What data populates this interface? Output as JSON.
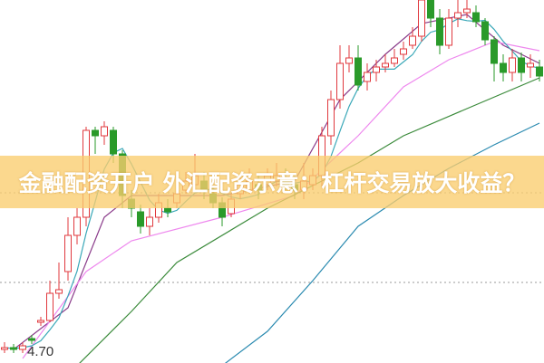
{
  "title": "金融配资开户 外汇配资示意：杠杆交易放大收益？",
  "chart_data": {
    "type": "candlestick",
    "title": "",
    "price_label": "4.70",
    "ylim": [
      4.65,
      6.65
    ],
    "grid": false,
    "reference_lines": [
      5.09,
      5.585
    ],
    "colors": {
      "up": "#e0393e",
      "down": "#2a9a2a",
      "ma5": "#3aa8b8",
      "ma_purple": "#8a3b8a",
      "ma_pink": "#ee88ee",
      "ma_green": "#3a8a3a",
      "ma_blue": "#2a8ab0",
      "banner": "#facd6e"
    },
    "candles": [
      [
        4.72,
        4.73,
        4.76,
        4.7
      ],
      [
        4.73,
        4.72,
        4.75,
        4.7
      ],
      [
        4.72,
        4.74,
        4.76,
        4.7
      ],
      [
        4.78,
        4.77,
        4.8,
        4.75
      ],
      [
        4.87,
        4.88,
        4.9,
        4.85
      ],
      [
        4.88,
        5.03,
        5.1,
        4.87
      ],
      [
        5.03,
        5.05,
        5.2,
        5.0
      ],
      [
        5.15,
        5.35,
        5.45,
        5.1
      ],
      [
        5.35,
        5.45,
        5.5,
        5.3
      ],
      [
        5.45,
        5.93,
        5.95,
        5.4
      ],
      [
        5.93,
        5.9,
        5.95,
        5.8
      ],
      [
        5.9,
        5.95,
        5.98,
        5.85
      ],
      [
        5.93,
        5.8,
        5.95,
        5.75
      ],
      [
        5.8,
        5.57,
        5.82,
        5.5
      ],
      [
        5.55,
        5.5,
        5.6,
        5.45
      ],
      [
        5.48,
        5.4,
        5.52,
        5.36
      ],
      [
        5.4,
        5.45,
        5.5,
        5.35
      ],
      [
        5.45,
        5.53,
        5.58,
        5.42
      ],
      [
        5.5,
        5.48,
        5.55,
        5.45
      ],
      [
        5.53,
        5.58,
        5.62,
        5.5
      ],
      [
        5.6,
        5.65,
        5.7,
        5.58
      ],
      [
        5.63,
        5.68,
        5.8,
        5.6
      ],
      [
        5.65,
        5.6,
        5.7,
        5.55
      ],
      [
        5.58,
        5.53,
        5.62,
        5.5
      ],
      [
        5.53,
        5.45,
        5.56,
        5.4
      ],
      [
        5.47,
        5.55,
        5.58,
        5.45
      ],
      [
        5.58,
        5.63,
        5.68,
        5.55
      ],
      [
        5.6,
        5.65,
        5.72,
        5.58
      ],
      [
        5.63,
        5.6,
        5.68,
        5.55
      ],
      [
        5.63,
        5.68,
        5.72,
        5.6
      ],
      [
        5.65,
        5.68,
        5.75,
        5.62
      ],
      [
        5.65,
        5.63,
        5.72,
        5.6
      ],
      [
        5.63,
        5.6,
        5.68,
        5.55
      ],
      [
        5.6,
        5.65,
        5.75,
        5.55
      ],
      [
        5.63,
        5.68,
        5.72,
        5.6
      ],
      [
        5.68,
        5.9,
        5.95,
        5.62
      ],
      [
        5.9,
        6.1,
        6.15,
        5.85
      ],
      [
        6.1,
        6.3,
        6.4,
        6.05
      ],
      [
        6.3,
        6.33,
        6.4,
        6.25
      ],
      [
        6.33,
        6.18,
        6.4,
        6.15
      ],
      [
        6.2,
        6.25,
        6.3,
        6.15
      ],
      [
        6.25,
        6.28,
        6.32,
        6.2
      ],
      [
        6.28,
        6.3,
        6.35,
        6.25
      ],
      [
        6.3,
        6.33,
        6.38,
        6.28
      ],
      [
        6.35,
        6.38,
        6.42,
        6.32
      ],
      [
        6.4,
        6.45,
        6.5,
        6.38
      ],
      [
        6.45,
        6.65,
        6.7,
        6.42
      ],
      [
        6.65,
        6.55,
        6.7,
        6.5
      ],
      [
        6.55,
        6.4,
        6.6,
        6.35
      ],
      [
        6.4,
        6.55,
        6.6,
        6.38
      ],
      [
        6.55,
        6.58,
        6.65,
        6.5
      ],
      [
        6.58,
        6.6,
        6.65,
        6.55
      ],
      [
        6.58,
        6.53,
        6.62,
        6.5
      ],
      [
        6.53,
        6.43,
        6.55,
        6.4
      ],
      [
        6.43,
        6.3,
        6.45,
        6.2
      ],
      [
        6.3,
        6.25,
        6.35,
        6.2
      ],
      [
        6.25,
        6.33,
        6.38,
        6.2
      ],
      [
        6.33,
        6.25,
        6.36,
        6.2
      ],
      [
        6.28,
        6.3,
        6.35,
        6.22
      ],
      [
        6.28,
        6.23,
        6.32,
        6.2
      ]
    ],
    "candle_fields": [
      "open",
      "close",
      "high",
      "low"
    ],
    "moving_averages": [
      {
        "color_key": "ma_purple",
        "points": [
          [
            1,
            4.72
          ],
          [
            7,
            4.95
          ],
          [
            11,
            5.45
          ],
          [
            14,
            5.57
          ],
          [
            24,
            5.57
          ],
          [
            32,
            5.65
          ],
          [
            37,
            6.1
          ],
          [
            42,
            6.35
          ],
          [
            46,
            6.52
          ],
          [
            51,
            6.57
          ],
          [
            55,
            6.4
          ],
          [
            59,
            6.3
          ]
        ]
      },
      {
        "color_key": "ma_pink",
        "points": [
          [
            2,
            4.67
          ],
          [
            9,
            5.15
          ],
          [
            14,
            5.32
          ],
          [
            24,
            5.45
          ],
          [
            32,
            5.57
          ],
          [
            39,
            5.9
          ],
          [
            44,
            6.17
          ],
          [
            49,
            6.32
          ],
          [
            54,
            6.42
          ],
          [
            59,
            6.37
          ]
        ]
      },
      {
        "color_key": "ma_green",
        "points": [
          [
            8,
            4.63
          ],
          [
            14,
            4.93
          ],
          [
            19,
            5.2
          ],
          [
            29,
            5.5
          ],
          [
            39,
            5.75
          ],
          [
            44,
            5.9
          ],
          [
            51,
            6.05
          ],
          [
            59,
            6.22
          ]
        ]
      },
      {
        "color_key": "ma_blue",
        "points": [
          [
            24,
            4.63
          ],
          [
            29,
            4.82
          ],
          [
            34,
            5.1
          ],
          [
            39,
            5.4
          ],
          [
            44,
            5.57
          ],
          [
            49,
            5.72
          ],
          [
            54,
            5.85
          ],
          [
            59,
            5.97
          ]
        ]
      }
    ]
  }
}
